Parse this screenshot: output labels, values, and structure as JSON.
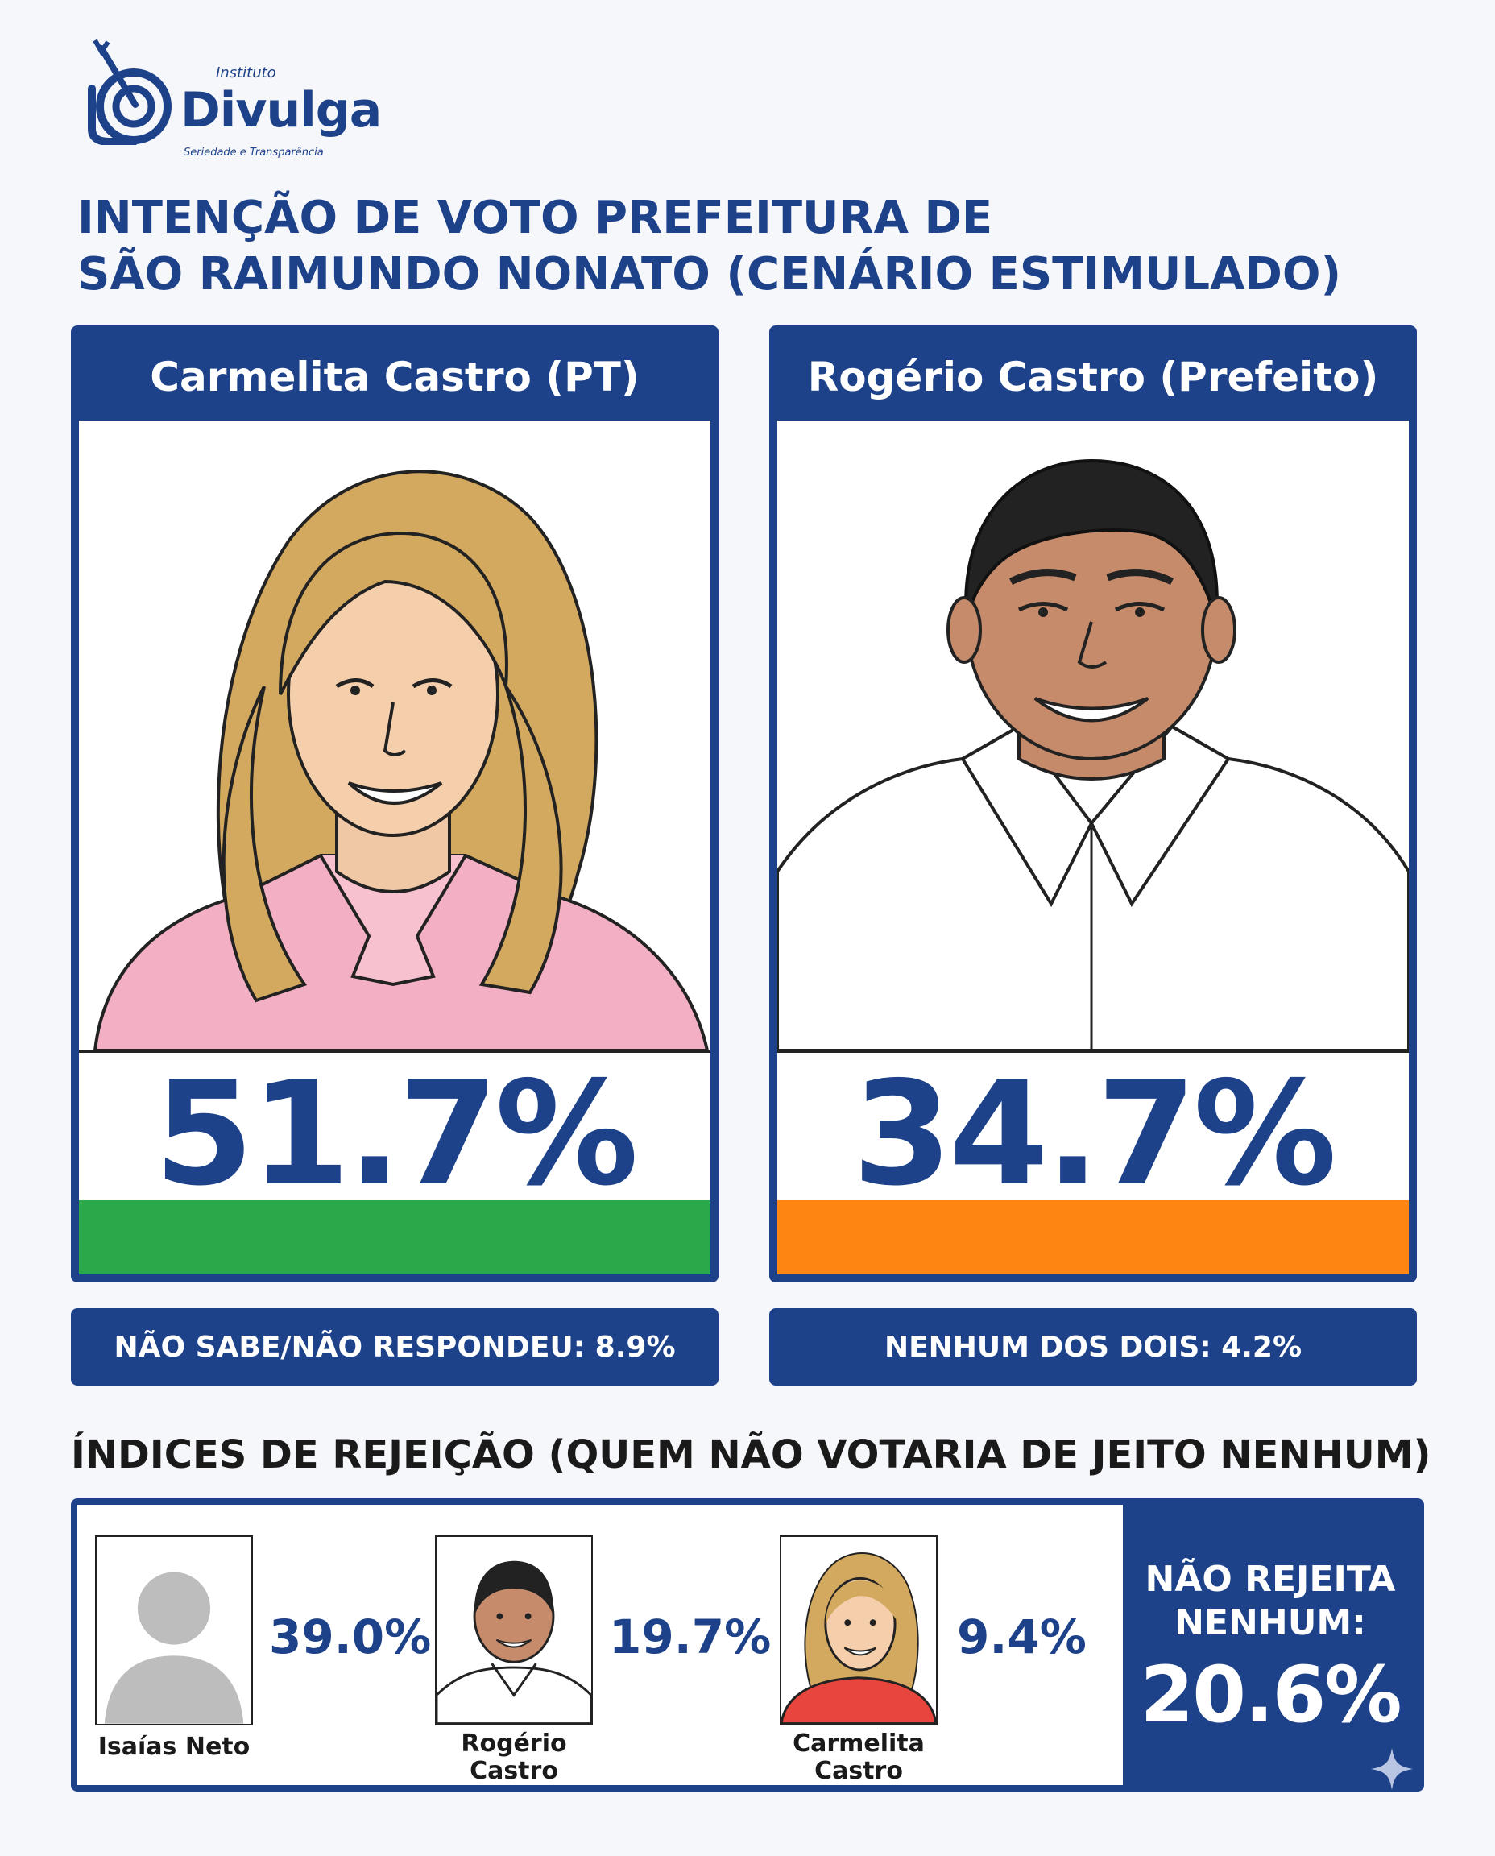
{
  "logo": {
    "small": "Instituto",
    "name": "Divulga",
    "tagline": "Seriedade e Transparência"
  },
  "title": {
    "line1": "INTENÇÃO DE VOTO PREFEITURA DE",
    "line2": "SÃO RAIMUNDO NONATO (CENÁRIO ESTIMULADO)"
  },
  "candidates": [
    {
      "name": "Carmelita Castro (PT)",
      "percent": "51.7%",
      "bar_color": "#2aa84a"
    },
    {
      "name": "Rogério Castro (Prefeito)",
      "percent": "34.7%",
      "bar_color": "#ff8512"
    }
  ],
  "footnotes": {
    "left": "NÃO SABE/NÃO RESPONDEU: 8.9%",
    "right": "NENHUM DOS DOIS: 4.2%"
  },
  "rejection": {
    "title": "ÍNDICES DE REJEIÇÃO (QUEM NÃO VOTARIA DE JEITO NENHUM)",
    "items": [
      {
        "name": "Isaías Neto",
        "value": "39.0%"
      },
      {
        "name_line1": "Rogério",
        "name_line2": "Castro",
        "value": "19.7%"
      },
      {
        "name_line1": "Carmelita",
        "name_line2": "Castro",
        "value": "9.4%"
      }
    ],
    "none_label_line1": "NÃO REJEITA",
    "none_label_line2": "NENHUM:",
    "none_value": "20.6%"
  },
  "colors": {
    "navy": "#1d428a",
    "green": "#2aa84a",
    "orange": "#ff8512"
  }
}
